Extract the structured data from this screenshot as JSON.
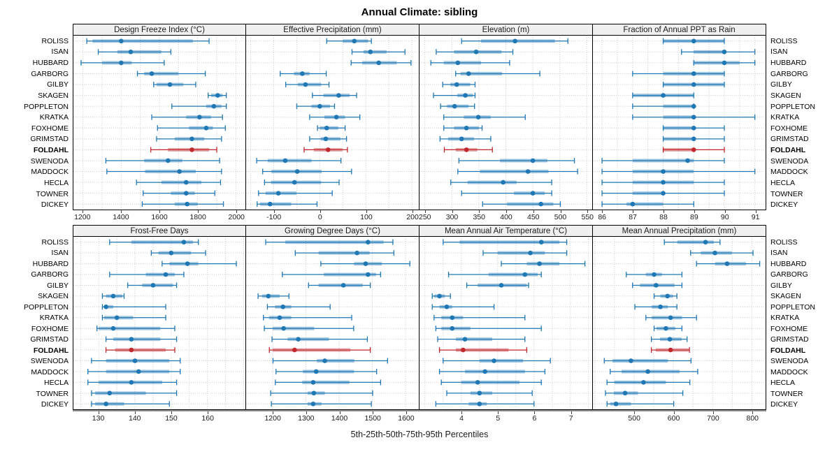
{
  "title": "Annual Climate: sibling",
  "caption": "5th-25th-50th-75th-95th Percentiles",
  "highlight_station": "FOLDAHL",
  "colors": {
    "primary": "#1f77b4",
    "highlight": "#c0282d",
    "grid": "#c9c9c9",
    "header_bg": "#f0f0f0",
    "axis_line": "#8f8f8f"
  },
  "stations": [
    "ROLISS",
    "ISAN",
    "HUBBARD",
    "GARBORG",
    "GILBY",
    "SKAGEN",
    "POPPLETON",
    "KRATKA",
    "FOXHOME",
    "GRIMSTAD",
    "FOLDAHL",
    "SWENODA",
    "MADDOCK",
    "HECLA",
    "TOWNER",
    "DICKEY"
  ],
  "percentile_labels": [
    "5th",
    "25th",
    "50th",
    "75th",
    "95th"
  ],
  "chart_data": [
    {
      "type": "boxplot",
      "orientation": "horizontal",
      "title": "Design Freeze Index (°C)",
      "xlim": [
        1150,
        2050
      ],
      "ticks": [
        1200,
        1400,
        1600,
        1800,
        2000
      ],
      "grid_step": 100,
      "values": [
        [
          1220,
          1250,
          1400,
          1775,
          1860
        ],
        [
          1280,
          1380,
          1450,
          1610,
          1660
        ],
        [
          1190,
          1300,
          1400,
          1455,
          1625
        ],
        [
          1485,
          1520,
          1560,
          1700,
          1840
        ],
        [
          1570,
          1585,
          1655,
          1725,
          1790
        ],
        [
          1855,
          1870,
          1905,
          1930,
          1950
        ],
        [
          1665,
          1845,
          1885,
          1925,
          1950
        ],
        [
          1560,
          1740,
          1810,
          1870,
          1930
        ],
        [
          1590,
          1755,
          1845,
          1880,
          1945
        ],
        [
          1585,
          1680,
          1770,
          1835,
          1925
        ],
        [
          1555,
          1645,
          1770,
          1860,
          1900
        ],
        [
          1320,
          1520,
          1645,
          1720,
          1915
        ],
        [
          1325,
          1525,
          1705,
          1790,
          1925
        ],
        [
          1480,
          1610,
          1740,
          1820,
          1920
        ],
        [
          1515,
          1660,
          1740,
          1785,
          1890
        ],
        [
          1510,
          1680,
          1745,
          1800,
          1935
        ]
      ]
    },
    {
      "type": "boxplot",
      "orientation": "horizontal",
      "title": "Effective Precipitation (mm)",
      "xlim": [
        -160,
        215
      ],
      "ticks": [
        -100,
        0,
        100,
        200
      ],
      "grid_step": 50,
      "values": [
        [
          15,
          50,
          75,
          105,
          112
        ],
        [
          70,
          95,
          110,
          145,
          185
        ],
        [
          68,
          92,
          128,
          167,
          198
        ],
        [
          -86,
          -56,
          -38,
          -22,
          14
        ],
        [
          -74,
          -48,
          -31,
          3,
          20
        ],
        [
          -16,
          8,
          41,
          65,
          80
        ],
        [
          -50,
          -18,
          0,
          22,
          32
        ],
        [
          -22,
          10,
          36,
          55,
          87
        ],
        [
          -5,
          0,
          15,
          40,
          55
        ],
        [
          -22,
          2,
          13,
          45,
          58
        ],
        [
          -34,
          -13,
          18,
          49,
          60
        ],
        [
          -137,
          -113,
          -75,
          -18,
          46
        ],
        [
          -124,
          -105,
          -49,
          4,
          69
        ],
        [
          -120,
          -106,
          -55,
          3,
          42
        ],
        [
          -133,
          -118,
          -90,
          -51,
          27
        ],
        [
          -136,
          -130,
          -108,
          -62,
          -6
        ]
      ]
    },
    {
      "type": "boxplot",
      "orientation": "horizontal",
      "title": "Elevation (m)",
      "xlim": [
        240,
        560
      ],
      "ticks": [
        250,
        300,
        350,
        400,
        450,
        500,
        550
      ],
      "grid_step": 50,
      "values": [
        [
          318,
          354,
          417,
          491,
          515
        ],
        [
          271,
          304,
          345,
          392,
          413
        ],
        [
          261,
          285,
          311,
          354,
          407
        ],
        [
          307,
          316,
          331,
          393,
          463
        ],
        [
          283,
          297,
          309,
          334,
          343
        ],
        [
          266,
          310,
          325,
          339,
          343
        ],
        [
          279,
          291,
          305,
          331,
          342
        ],
        [
          285,
          322,
          349,
          372,
          436
        ],
        [
          285,
          304,
          327,
          350,
          356
        ],
        [
          278,
          293,
          318,
          341,
          372
        ],
        [
          286,
          307,
          327,
          347,
          375
        ],
        [
          313,
          389,
          450,
          477,
          527
        ],
        [
          311,
          352,
          441,
          479,
          533
        ],
        [
          298,
          329,
          395,
          420,
          485
        ],
        [
          318,
          415,
          450,
          472,
          485
        ],
        [
          357,
          402,
          465,
          488,
          501
        ]
      ]
    },
    {
      "type": "boxplot",
      "orientation": "horizontal",
      "title": "Fraction of Annual PPT as Rain",
      "xlim": [
        85.7,
        91.35
      ],
      "ticks": [
        86,
        87,
        88,
        89,
        90,
        91
      ],
      "grid_step": 0.5,
      "values": [
        [
          88,
          88,
          89,
          90,
          90
        ],
        [
          88.6,
          89,
          90,
          90,
          91
        ],
        [
          89,
          89,
          90,
          90.5,
          91
        ],
        [
          87,
          88,
          89,
          90,
          90
        ],
        [
          88,
          88,
          89,
          90,
          90
        ],
        [
          87,
          87,
          88,
          89,
          89
        ],
        [
          87,
          88,
          89,
          89,
          89
        ],
        [
          87,
          88,
          89,
          89,
          91
        ],
        [
          88,
          88,
          89,
          89,
          90
        ],
        [
          88,
          88,
          89,
          89,
          90
        ],
        [
          88,
          88,
          89,
          89,
          90
        ],
        [
          86,
          87,
          88.8,
          89,
          90
        ],
        [
          86,
          87,
          88,
          89,
          91
        ],
        [
          86,
          87,
          88,
          89,
          90
        ],
        [
          86,
          87,
          88,
          88,
          90
        ],
        [
          86,
          86.8,
          87,
          88,
          89
        ]
      ]
    },
    {
      "type": "boxplot",
      "orientation": "horizontal",
      "title": "Frost-Free Days",
      "xlim": [
        123,
        170.5
      ],
      "ticks": [
        130,
        140,
        150,
        160
      ],
      "grid_step": 5,
      "values": [
        [
          133,
          139,
          153.5,
          156,
          157.5
        ],
        [
          144.5,
          146.5,
          150,
          155.5,
          159.5
        ],
        [
          147.5,
          149.5,
          154.5,
          157.5,
          168
        ],
        [
          133,
          143,
          148.5,
          151,
          153.5
        ],
        [
          138,
          142,
          145,
          150.5,
          151.5
        ],
        [
          131,
          132,
          134,
          136.5,
          137
        ],
        [
          131,
          131.5,
          132,
          134,
          148.5
        ],
        [
          131,
          131.5,
          135,
          139.5,
          148.5
        ],
        [
          129.5,
          130,
          134,
          147,
          151
        ],
        [
          132,
          134,
          139,
          147,
          151.5
        ],
        [
          132,
          134.5,
          139,
          148.5,
          151
        ],
        [
          128,
          132,
          140,
          149.5,
          152.5
        ],
        [
          127,
          132,
          141,
          149.5,
          152.5
        ],
        [
          127,
          130,
          139,
          147.5,
          151.5
        ],
        [
          128,
          129,
          133,
          143,
          151.5
        ],
        [
          128,
          129,
          132,
          137,
          149.5
        ]
      ]
    },
    {
      "type": "boxplot",
      "orientation": "horizontal",
      "title": "Growing Degree Days (°C)",
      "xlim": [
        1120,
        1640
      ],
      "ticks": [
        1200,
        1300,
        1400,
        1500,
        1600
      ],
      "grid_step": 100,
      "values": [
        [
          1179,
          1238,
          1487,
          1534,
          1562
        ],
        [
          1268,
          1338,
          1454,
          1492,
          1565
        ],
        [
          1345,
          1445,
          1480,
          1529,
          1613
        ],
        [
          1229,
          1354,
          1487,
          1511,
          1525
        ],
        [
          1308,
          1338,
          1413,
          1471,
          1494
        ],
        [
          1156,
          1168,
          1187,
          1221,
          1249
        ],
        [
          1184,
          1207,
          1231,
          1256,
          1373
        ],
        [
          1172,
          1189,
          1221,
          1256,
          1438
        ],
        [
          1175,
          1200,
          1233,
          1325,
          1444
        ],
        [
          1198,
          1245,
          1277,
          1369,
          1485
        ],
        [
          1190,
          1200,
          1266,
          1434,
          1494
        ],
        [
          1201,
          1333,
          1357,
          1446,
          1546
        ],
        [
          1210,
          1291,
          1331,
          1445,
          1513
        ],
        [
          1208,
          1289,
          1322,
          1431,
          1525
        ],
        [
          1194,
          1305,
          1324,
          1357,
          1501
        ],
        [
          1196,
          1305,
          1322,
          1347,
          1497
        ]
      ]
    },
    {
      "type": "boxplot",
      "orientation": "horizontal",
      "title": "Mean Annual Air Temperature (°C)",
      "xlim": [
        2.85,
        7.6
      ],
      "ticks": [
        4,
        5,
        6,
        7
      ],
      "grid_step": 0.5,
      "values": [
        [
          3.5,
          3.95,
          6.2,
          6.7,
          6.9
        ],
        [
          4.6,
          5.0,
          5.9,
          6.3,
          6.9
        ],
        [
          5.1,
          5.8,
          6.15,
          6.7,
          7.4
        ],
        [
          3.65,
          4.75,
          5.75,
          6.1,
          6.2
        ],
        [
          4.15,
          4.45,
          5.1,
          5.8,
          5.85
        ],
        [
          3.2,
          3.25,
          3.4,
          3.55,
          3.7
        ],
        [
          3.2,
          3.4,
          3.6,
          3.75,
          4.9
        ],
        [
          3.25,
          3.45,
          3.75,
          4.05,
          5.75
        ],
        [
          3.3,
          3.45,
          3.75,
          4.25,
          6.2
        ],
        [
          3.35,
          3.85,
          4.1,
          4.85,
          5.75
        ],
        [
          3.4,
          3.85,
          4.05,
          5.3,
          5.8
        ],
        [
          3.5,
          4.5,
          4.9,
          5.7,
          6.45
        ],
        [
          3.4,
          4.1,
          4.65,
          5.75,
          6.3
        ],
        [
          3.45,
          4.0,
          4.45,
          5.6,
          6.2
        ],
        [
          3.6,
          4.25,
          4.5,
          4.85,
          5.95
        ],
        [
          3.3,
          4.2,
          4.5,
          4.7,
          6.0
        ]
      ]
    },
    {
      "type": "boxplot",
      "orientation": "horizontal",
      "title": "Mean Annual Precipitation (mm)",
      "xlim": [
        395,
        835
      ],
      "ticks": [
        500,
        600,
        700,
        800
      ],
      "grid_step": 50,
      "values": [
        [
          577,
          610,
          682,
          703,
          719
        ],
        [
          644,
          670,
          706,
          749,
          803
        ],
        [
          659,
          706,
          737,
          785,
          820
        ],
        [
          480,
          530,
          551,
          571,
          622
        ],
        [
          496,
          515,
          556,
          603,
          622
        ],
        [
          551,
          567,
          585,
          599,
          609
        ],
        [
          502,
          545,
          567,
          586,
          609
        ],
        [
          530,
          545,
          593,
          622,
          659
        ],
        [
          551,
          557,
          581,
          605,
          622
        ],
        [
          544,
          566,
          591,
          621,
          635
        ],
        [
          544,
          555,
          593,
          639,
          641
        ],
        [
          424,
          445,
          492,
          586,
          645
        ],
        [
          439,
          468,
          535,
          616,
          662
        ],
        [
          431,
          450,
          524,
          581,
          642
        ],
        [
          427,
          448,
          477,
          510,
          624
        ],
        [
          431,
          439,
          454,
          492,
          601
        ]
      ]
    }
  ]
}
